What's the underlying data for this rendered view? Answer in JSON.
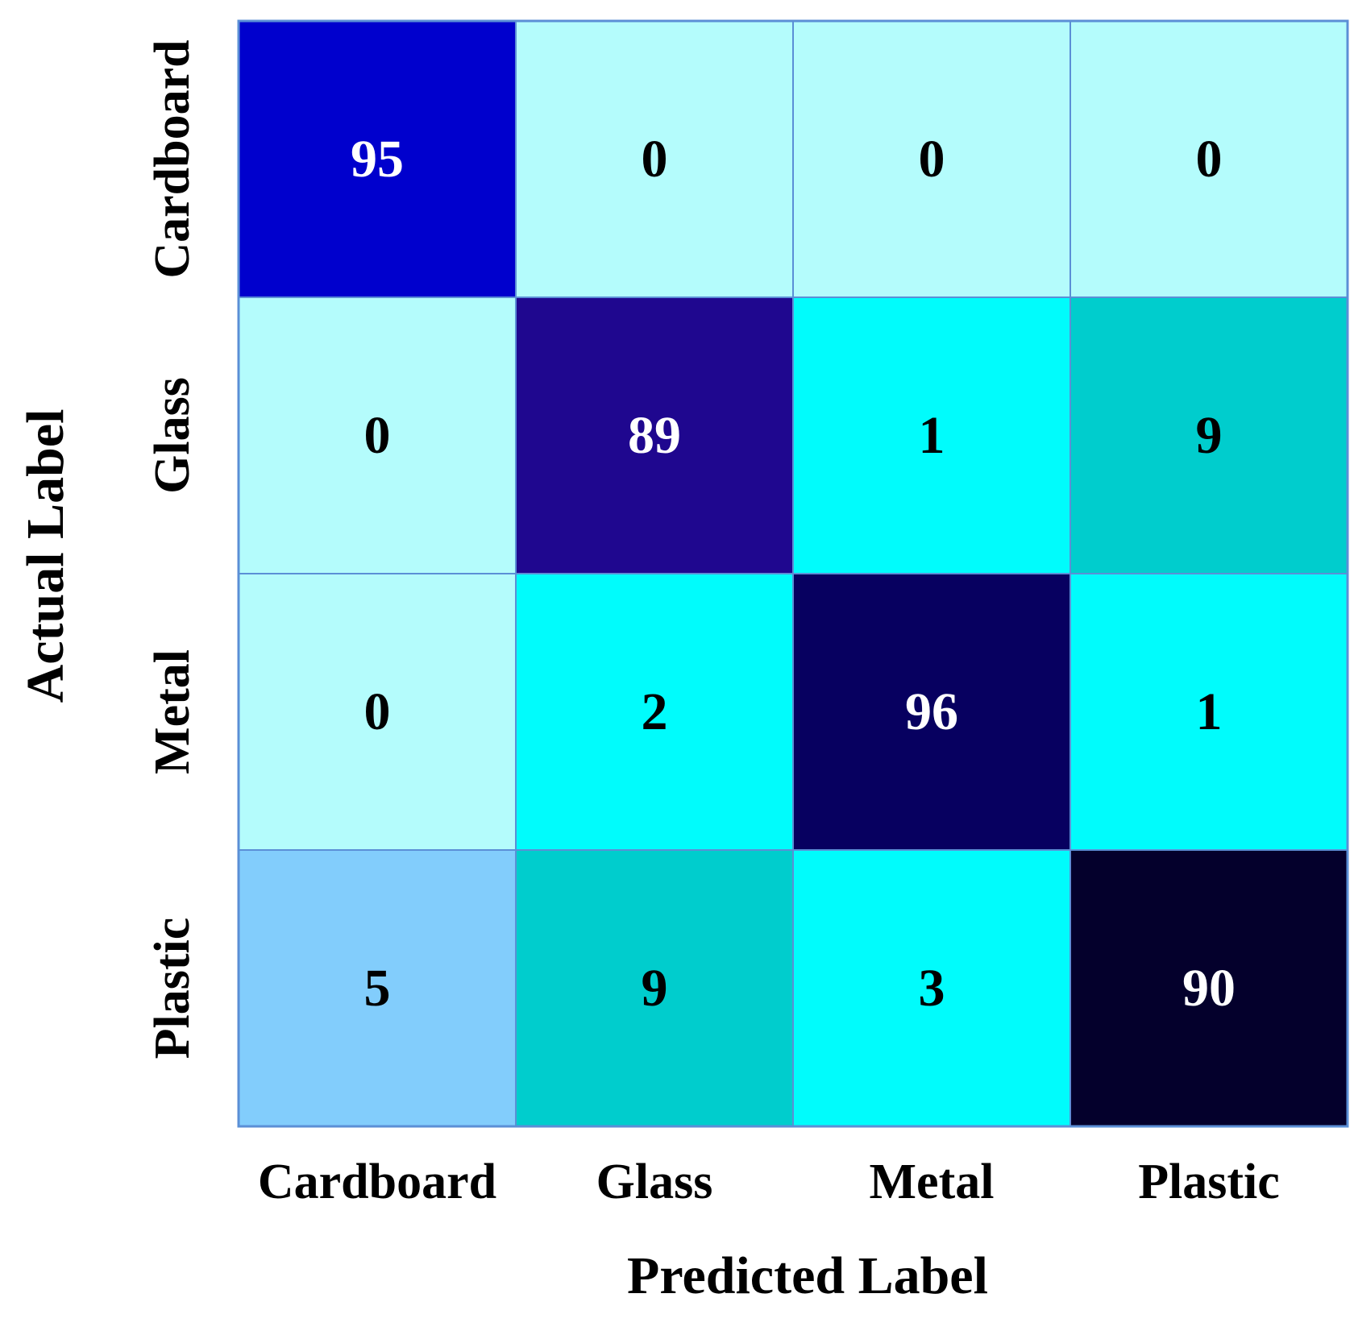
{
  "chart_data": {
    "type": "heatmap",
    "title": "",
    "xlabel": "Predicted Label",
    "ylabel": "Actual Label",
    "x_categories": [
      "Cardboard",
      "Glass",
      "Metal",
      "Plastic"
    ],
    "y_categories": [
      "Cardboard",
      "Glass",
      "Metal",
      "Plastic"
    ],
    "values": [
      [
        95,
        0,
        0,
        0
      ],
      [
        0,
        89,
        1,
        9
      ],
      [
        0,
        2,
        96,
        1
      ],
      [
        5,
        9,
        3,
        90
      ]
    ],
    "cell_colors": [
      [
        "#0000cd",
        "#b4fcfc",
        "#b4fcfc",
        "#b4fcfc"
      ],
      [
        "#b4fcfc",
        "#1f078f",
        "#00fcfc",
        "#00cdcd"
      ],
      [
        "#b4fcfc",
        "#00fcfc",
        "#070060",
        "#00fcfc"
      ],
      [
        "#82cdfc",
        "#00cdcd",
        "#00fcfc",
        "#04002c"
      ]
    ],
    "text_colors": [
      [
        "#ffffff",
        "#000000",
        "#000000",
        "#000000"
      ],
      [
        "#000000",
        "#ffffff",
        "#000000",
        "#000000"
      ],
      [
        "#000000",
        "#000000",
        "#ffffff",
        "#000000"
      ],
      [
        "#000000",
        "#000000",
        "#000000",
        "#ffffff"
      ]
    ],
    "grid_color": "#5b8fd6",
    "legend": "none"
  }
}
